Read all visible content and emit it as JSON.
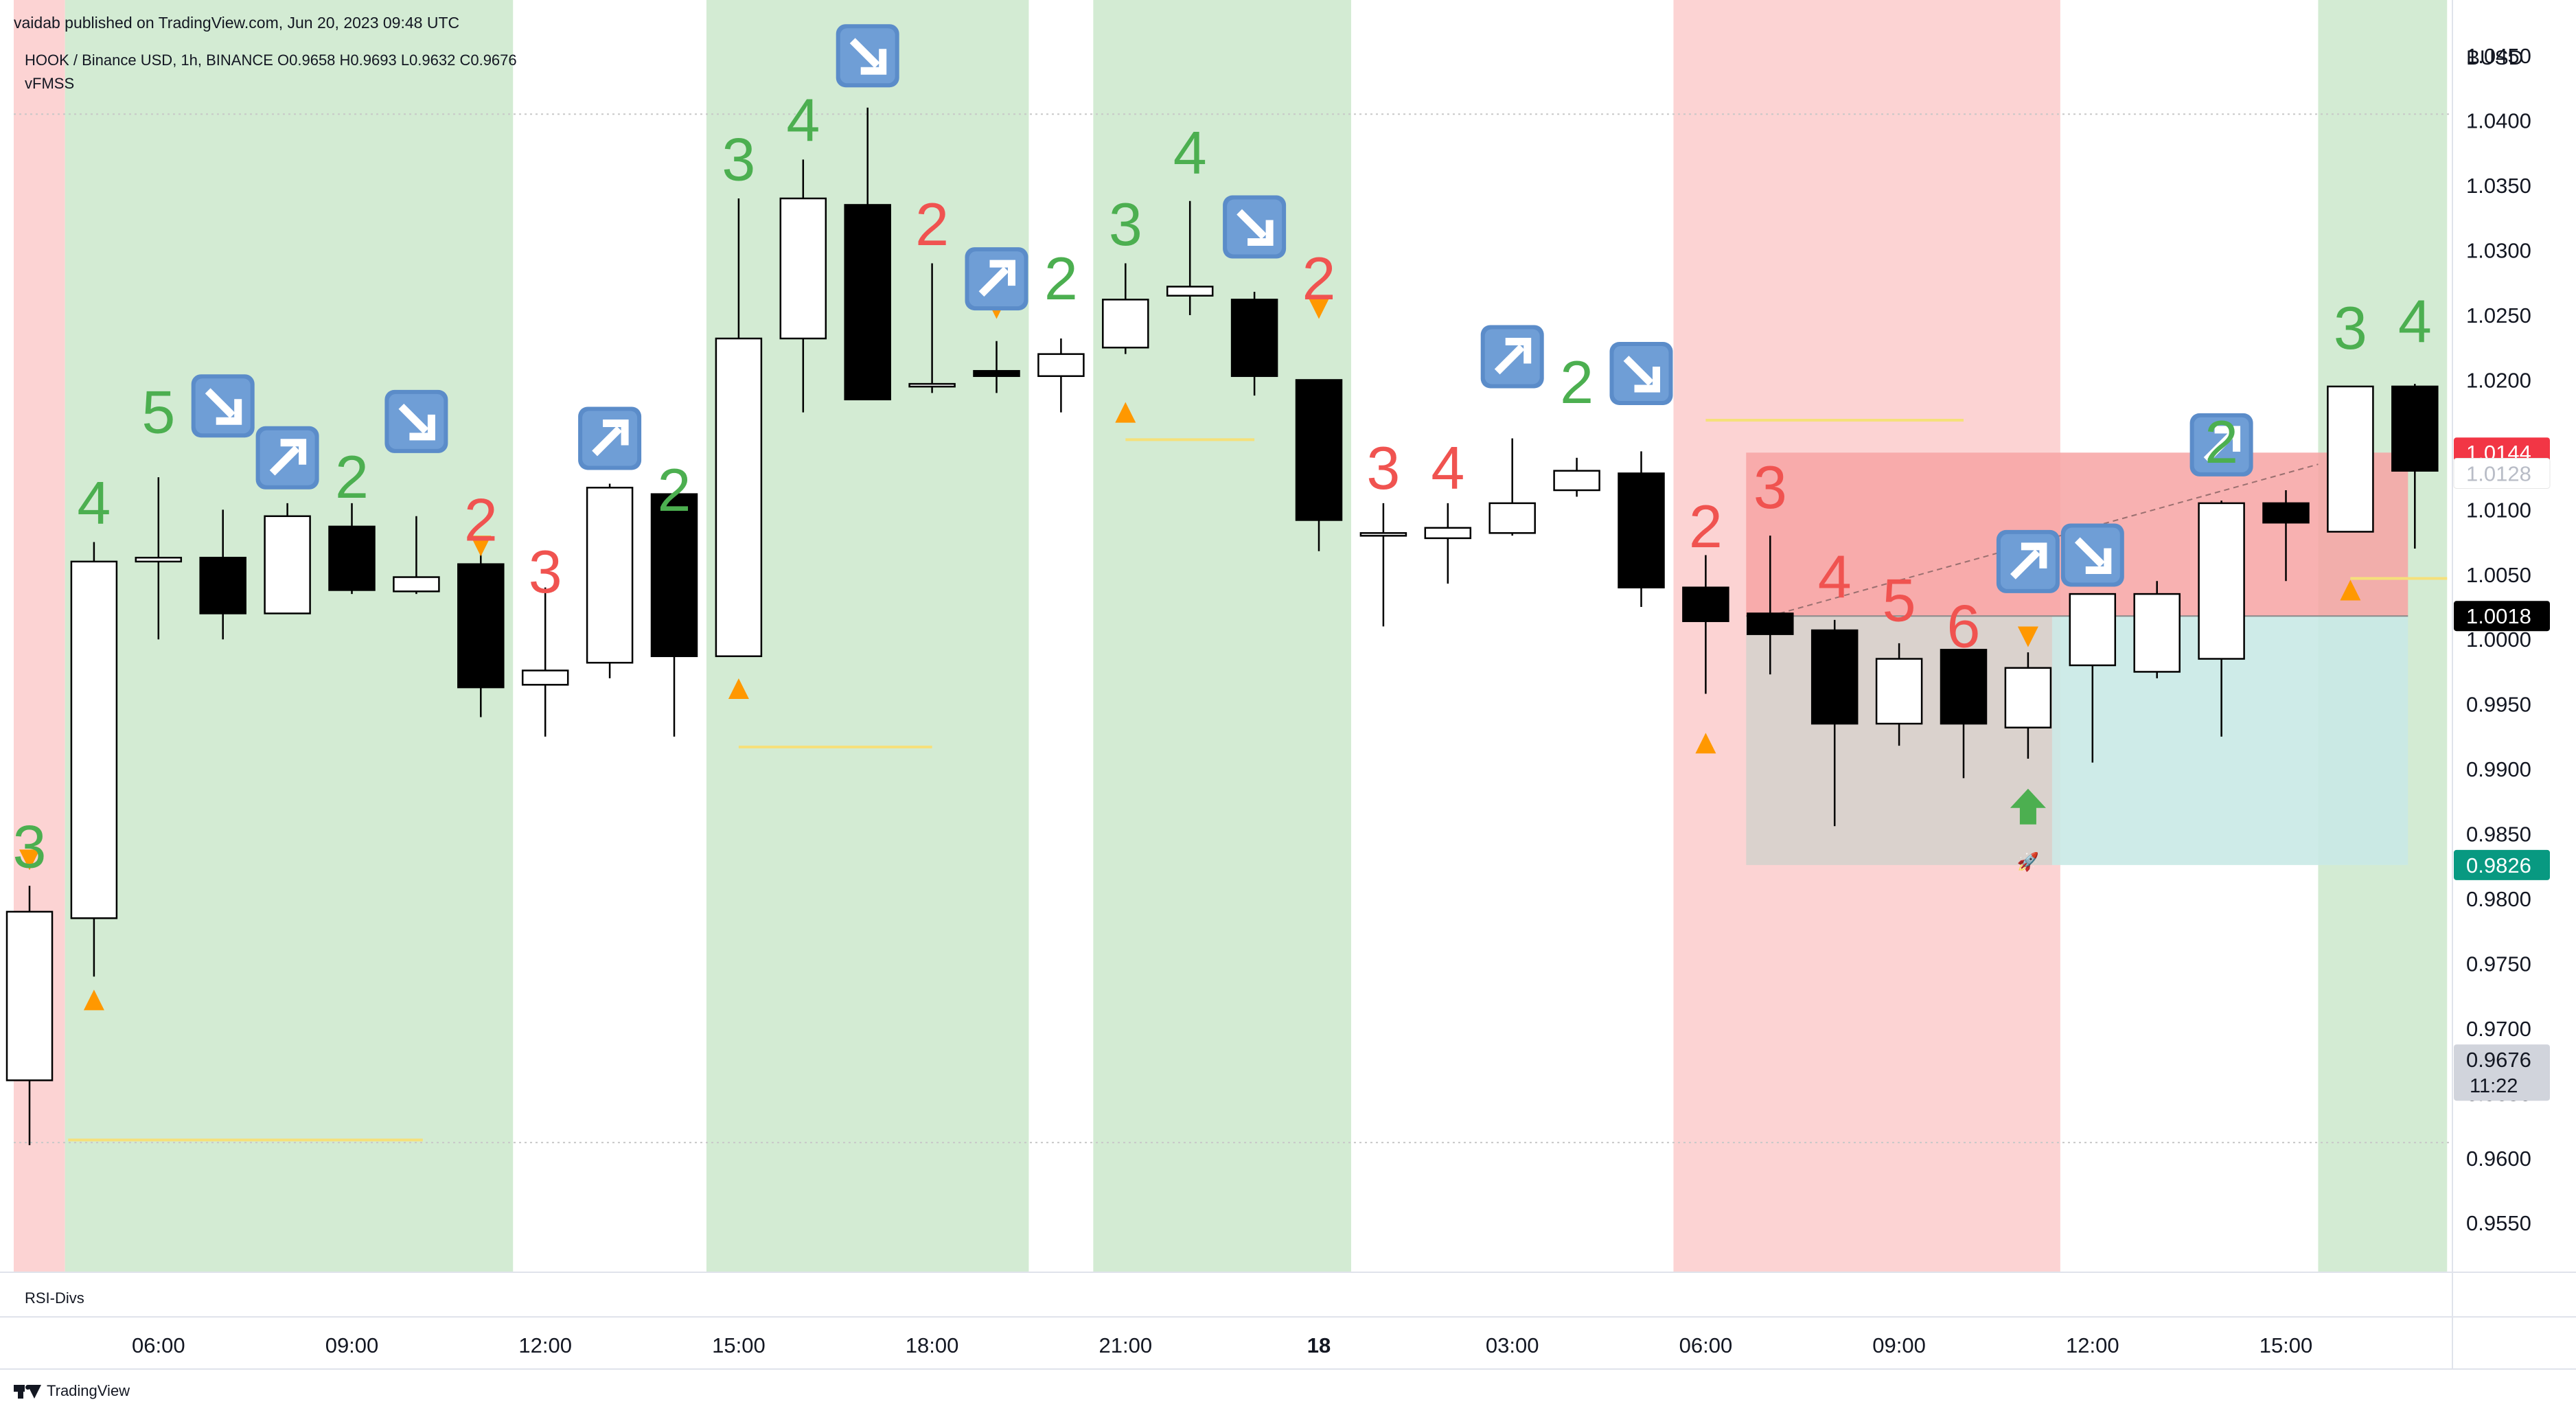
{
  "header": {
    "published": "vaidab published on TradingView.com, Jun 20, 2023 09:48 UTC",
    "symbol_line": "HOOK / Binance USD, 1h, BINANCE  O0.9658  H0.9693  L0.9632  C0.9676",
    "indicator": "vFMSS",
    "currency": "BUSD"
  },
  "lower_pane": {
    "label": "RSI-Divs"
  },
  "footer": {
    "brand": "TradingView"
  },
  "colors": {
    "bg_red": "#fcd3d3",
    "bg_green": "#d3ebd3",
    "label_green": "#4caf50",
    "label_red": "#f05350",
    "triangle": "#ff9800",
    "level_line": "#f5e07a",
    "stop_zone": "#f7a3a3",
    "target_zone": "#c9e9e5",
    "entry_zone": "#d6d1cc",
    "arrow_icon": "#5b8cc9",
    "badge_red": "#f23645",
    "badge_black": "#000000",
    "badge_teal": "#089981",
    "badge_grey": "#d1d4dc",
    "up_arrow": "#4caf50"
  },
  "chart_data": {
    "type": "candlestick",
    "ylim": [
      0.9512,
      1.0493
    ],
    "y_ticks": [
      1.045,
      1.04,
      1.035,
      1.03,
      1.025,
      1.02,
      1.015,
      1.01,
      1.005,
      1.0,
      0.995,
      0.99,
      0.985,
      0.98,
      0.975,
      0.97,
      0.965,
      0.96,
      0.955
    ],
    "y_tick_labels": [
      "1.0450",
      "1.0400",
      "1.0350",
      "1.0300",
      "1.0250",
      "1.0200",
      "1.0150",
      "1.0100",
      "1.0050",
      "1.0000",
      "0.9950",
      "0.9900",
      "0.9850",
      "0.9800",
      "0.9750",
      "0.9700",
      "0.9650",
      "0.9600",
      "0.9550"
    ],
    "x_ticks": [
      {
        "index": 2,
        "label": "06:00",
        "bold": false
      },
      {
        "index": 5,
        "label": "09:00",
        "bold": false
      },
      {
        "index": 8,
        "label": "12:00",
        "bold": false
      },
      {
        "index": 11,
        "label": "15:00",
        "bold": false
      },
      {
        "index": 14,
        "label": "18:00",
        "bold": false
      },
      {
        "index": 17,
        "label": "21:00",
        "bold": false
      },
      {
        "index": 20,
        "label": "18",
        "bold": true
      },
      {
        "index": 23,
        "label": "03:00",
        "bold": false
      },
      {
        "index": 26,
        "label": "06:00",
        "bold": false
      },
      {
        "index": 29,
        "label": "09:00",
        "bold": false
      },
      {
        "index": 32,
        "label": "12:00",
        "bold": false
      },
      {
        "index": 35,
        "label": "15:00",
        "bold": false
      }
    ],
    "candles": [
      {
        "o": 0.966,
        "h": 0.981,
        "l": 0.961,
        "c": 0.979
      },
      {
        "o": 0.9785,
        "h": 1.0075,
        "l": 0.974,
        "c": 1.006
      },
      {
        "o": 1.006,
        "h": 1.0125,
        "l": 1.0,
        "c": 1.0063
      },
      {
        "o": 1.0063,
        "h": 1.01,
        "l": 1.0,
        "c": 1.002
      },
      {
        "o": 1.002,
        "h": 1.0105,
        "l": 1.002,
        "c": 1.0095
      },
      {
        "o": 1.0087,
        "h": 1.0105,
        "l": 1.0035,
        "c": 1.0038
      },
      {
        "o": 1.0037,
        "h": 1.0095,
        "l": 1.0035,
        "c": 1.0048
      },
      {
        "o": 1.0058,
        "h": 1.007,
        "l": 0.994,
        "c": 0.9963
      },
      {
        "o": 0.9965,
        "h": 1.004,
        "l": 0.9925,
        "c": 0.9976
      },
      {
        "o": 0.9982,
        "h": 1.012,
        "l": 0.997,
        "c": 1.0117
      },
      {
        "o": 1.0112,
        "h": 1.0112,
        "l": 0.9925,
        "c": 0.9987
      },
      {
        "o": 0.9987,
        "h": 1.034,
        "l": 0.9987,
        "c": 1.0232
      },
      {
        "o": 1.0232,
        "h": 1.037,
        "l": 1.0175,
        "c": 1.034
      },
      {
        "o": 1.0335,
        "h": 1.041,
        "l": 1.0185,
        "c": 1.0185
      },
      {
        "o": 1.0195,
        "h": 1.029,
        "l": 1.019,
        "c": 1.0197
      },
      {
        "o": 1.0207,
        "h": 1.023,
        "l": 1.019,
        "c": 1.0203
      },
      {
        "o": 1.0203,
        "h": 1.0232,
        "l": 1.0175,
        "c": 1.022
      },
      {
        "o": 1.0225,
        "h": 1.029,
        "l": 1.022,
        "c": 1.0262
      },
      {
        "o": 1.0265,
        "h": 1.0338,
        "l": 1.025,
        "c": 1.0272
      },
      {
        "o": 1.0262,
        "h": 1.0268,
        "l": 1.0188,
        "c": 1.0203
      },
      {
        "o": 1.02,
        "h": 1.02,
        "l": 1.0068,
        "c": 1.0092
      },
      {
        "o": 1.0082,
        "h": 1.0105,
        "l": 1.001,
        "c": 1.0082
      },
      {
        "o": 1.0078,
        "h": 1.0105,
        "l": 1.0043,
        "c": 1.0086
      },
      {
        "o": 1.0082,
        "h": 1.0155,
        "l": 1.008,
        "c": 1.0105
      },
      {
        "o": 1.0115,
        "h": 1.014,
        "l": 1.011,
        "c": 1.013
      },
      {
        "o": 1.0128,
        "h": 1.0145,
        "l": 1.0025,
        "c": 1.004
      },
      {
        "o": 1.004,
        "h": 1.0065,
        "l": 0.9958,
        "c": 1.0014
      },
      {
        "o": 1.002,
        "h": 1.008,
        "l": 0.9973,
        "c": 1.0004
      },
      {
        "o": 1.0007,
        "h": 1.0015,
        "l": 0.9856,
        "c": 0.9935
      },
      {
        "o": 0.9935,
        "h": 0.9997,
        "l": 0.9918,
        "c": 0.9985
      },
      {
        "o": 0.9992,
        "h": 0.9992,
        "l": 0.9893,
        "c": 0.9935
      },
      {
        "o": 0.9932,
        "h": 0.999,
        "l": 0.9908,
        "c": 0.9978
      },
      {
        "o": 0.998,
        "h": 1.0035,
        "l": 0.9905,
        "c": 1.0035
      },
      {
        "o": 0.9975,
        "h": 1.0045,
        "l": 0.997,
        "c": 1.0035
      },
      {
        "o": 0.9985,
        "h": 1.0107,
        "l": 0.9925,
        "c": 1.0105
      },
      {
        "o": 1.0105,
        "h": 1.0115,
        "l": 1.0045,
        "c": 1.009
      },
      {
        "o": 1.0083,
        "h": 1.0195,
        "l": 1.0083,
        "c": 1.0195
      },
      {
        "o": 1.0195,
        "h": 1.0197,
        "l": 1.007,
        "c": 1.013
      }
    ],
    "background_bands": [
      {
        "from": 0,
        "to": 0.55,
        "color": "red"
      },
      {
        "from": 0.55,
        "to": 7.5,
        "color": "green"
      },
      {
        "from": 10.5,
        "to": 15.5,
        "color": "green"
      },
      {
        "from": 16.5,
        "to": 20.5,
        "color": "green"
      },
      {
        "from": 25.5,
        "to": 31.5,
        "color": "red"
      },
      {
        "from": 35.5,
        "to": 37.5,
        "color": "green"
      }
    ],
    "sequence_labels": [
      {
        "index": 0,
        "text": "3",
        "color": "green",
        "price": 0.984
      },
      {
        "index": 1,
        "text": "4",
        "color": "green",
        "price": 1.0105
      },
      {
        "index": 2,
        "text": "5",
        "color": "green",
        "price": 1.0175
      },
      {
        "index": 5,
        "text": "2",
        "color": "green",
        "price": 1.0125
      },
      {
        "index": 7,
        "text": "2",
        "color": "red",
        "price": 1.0092
      },
      {
        "index": 8,
        "text": "3",
        "color": "red",
        "price": 1.0052
      },
      {
        "index": 10,
        "text": "2",
        "color": "green",
        "price": 1.0115
      },
      {
        "index": 11,
        "text": "3",
        "color": "green",
        "price": 1.037
      },
      {
        "index": 12,
        "text": "4",
        "color": "green",
        "price": 1.04
      },
      {
        "index": 14,
        "text": "2",
        "color": "red",
        "price": 1.032
      },
      {
        "index": 16,
        "text": "2",
        "color": "green",
        "price": 1.0278
      },
      {
        "index": 17,
        "text": "3",
        "color": "green",
        "price": 1.032
      },
      {
        "index": 18,
        "text": "4",
        "color": "green",
        "price": 1.0375
      },
      {
        "index": 20,
        "text": "2",
        "color": "red",
        "price": 1.0278
      },
      {
        "index": 21,
        "text": "3",
        "color": "red",
        "price": 1.0132
      },
      {
        "index": 22,
        "text": "4",
        "color": "red",
        "price": 1.0132
      },
      {
        "index": 24,
        "text": "2",
        "color": "green",
        "price": 1.0198
      },
      {
        "index": 26,
        "text": "2",
        "color": "red",
        "price": 1.0087
      },
      {
        "index": 27,
        "text": "3",
        "color": "red",
        "price": 1.0117
      },
      {
        "index": 28,
        "text": "4",
        "color": "red",
        "price": 1.0048
      },
      {
        "index": 29,
        "text": "5",
        "color": "red",
        "price": 1.003
      },
      {
        "index": 30,
        "text": "6",
        "color": "red",
        "price": 1.001
      },
      {
        "index": 34,
        "text": "2",
        "color": "green",
        "price": 1.0152
      },
      {
        "index": 36,
        "text": "3",
        "color": "green",
        "price": 1.024
      },
      {
        "index": 37,
        "text": "4",
        "color": "green",
        "price": 1.0245
      }
    ],
    "arrow_icons": [
      {
        "index": 3,
        "dir": "down",
        "price": 1.018
      },
      {
        "index": 4,
        "dir": "up",
        "price": 1.014
      },
      {
        "index": 6,
        "dir": "down",
        "price": 1.0168
      },
      {
        "index": 9,
        "dir": "up",
        "price": 1.0155
      },
      {
        "index": 13,
        "dir": "down",
        "price": 1.045
      },
      {
        "index": 15,
        "dir": "up",
        "price": 1.0278
      },
      {
        "index": 19,
        "dir": "down",
        "price": 1.0318
      },
      {
        "index": 23,
        "dir": "up",
        "price": 1.0218
      },
      {
        "index": 25,
        "dir": "down",
        "price": 1.0205
      },
      {
        "index": 31,
        "dir": "up",
        "price": 1.006
      },
      {
        "index": 32,
        "dir": "down",
        "price": 1.0065
      },
      {
        "index": 34,
        "dir": "up",
        "price": 1.015
      }
    ],
    "triangles": [
      {
        "index": 0,
        "dir": "down",
        "price": 0.983
      },
      {
        "index": 1,
        "dir": "up",
        "price": 0.9722
      },
      {
        "index": 7,
        "dir": "down",
        "price": 1.0072
      },
      {
        "index": 11,
        "dir": "up",
        "price": 0.9962
      },
      {
        "index": 15,
        "dir": "down",
        "price": 1.0255
      },
      {
        "index": 17,
        "dir": "up",
        "price": 1.0175
      },
      {
        "index": 20,
        "dir": "down",
        "price": 1.0255
      },
      {
        "index": 26,
        "dir": "up",
        "price": 0.992
      },
      {
        "index": 31,
        "dir": "down",
        "price": 1.0002
      },
      {
        "index": 36,
        "dir": "up",
        "price": 1.0038
      }
    ],
    "level_lines": [
      {
        "from": 0.6,
        "to": 6.1,
        "price": 0.9614
      },
      {
        "from": 11.0,
        "to": 14.0,
        "price": 0.9917
      },
      {
        "from": 17.0,
        "to": 19.0,
        "price": 1.0154
      },
      {
        "from": 26.0,
        "to": 30.0,
        "price": 1.0169
      },
      {
        "from": 36.0,
        "to": 37.5,
        "price": 1.0047
      }
    ],
    "position": {
      "from": 27.0,
      "to": 37.0,
      "entry": 1.0018,
      "stop": 1.0144,
      "target": 0.9826,
      "split": 31.0
    },
    "diag_line": {
      "from": 27.0,
      "y0": 1.0018,
      "to": 35.5,
      "y1": 1.0135
    },
    "signal_marker": {
      "index": 31,
      "price": 0.987
    },
    "rocket_marker": {
      "index": 31,
      "price": 0.9828,
      "glyph": "🚀"
    },
    "gridlines": [
      1.0405,
      0.9612
    ],
    "price_badges": [
      {
        "text": "1.0144",
        "price": 1.0144,
        "kind": "red"
      },
      {
        "text": "1.0128",
        "price": 1.0128,
        "kind": "faded"
      },
      {
        "text": "1.0018",
        "price": 1.0018,
        "kind": "black"
      },
      {
        "text": "0.9826",
        "price": 0.9826,
        "kind": "teal"
      },
      {
        "text": "0.9676",
        "price": 0.9676,
        "kind": "grey",
        "sub": "11:22"
      }
    ]
  }
}
